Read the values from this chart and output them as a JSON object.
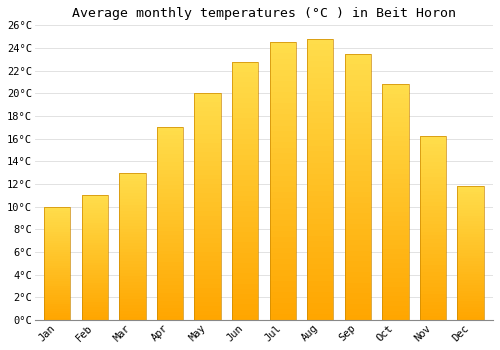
{
  "title": "Average monthly temperatures (°C ) in Beit Horon",
  "months": [
    "Jan",
    "Feb",
    "Mar",
    "Apr",
    "May",
    "Jun",
    "Jul",
    "Aug",
    "Sep",
    "Oct",
    "Nov",
    "Dec"
  ],
  "values": [
    10.0,
    11.0,
    13.0,
    17.0,
    20.0,
    22.8,
    24.5,
    24.8,
    23.5,
    20.8,
    16.2,
    11.8
  ],
  "bar_color_main": "#FFAA00",
  "bar_color_light": "#FFD050",
  "ylim": [
    0,
    26
  ],
  "yticks": [
    0,
    2,
    4,
    6,
    8,
    10,
    12,
    14,
    16,
    18,
    20,
    22,
    24,
    26
  ],
  "ytick_labels": [
    "0°C",
    "2°C",
    "4°C",
    "6°C",
    "8°C",
    "10°C",
    "12°C",
    "14°C",
    "16°C",
    "18°C",
    "20°C",
    "22°C",
    "24°C",
    "26°C"
  ],
  "bg_color": "#FFFFFF",
  "grid_color": "#DDDDDD",
  "title_fontsize": 9.5,
  "tick_fontsize": 7.5,
  "font_family": "monospace",
  "bar_width": 0.7,
  "bar_edge_color": "#CC8800",
  "bar_edge_width": 0.5
}
